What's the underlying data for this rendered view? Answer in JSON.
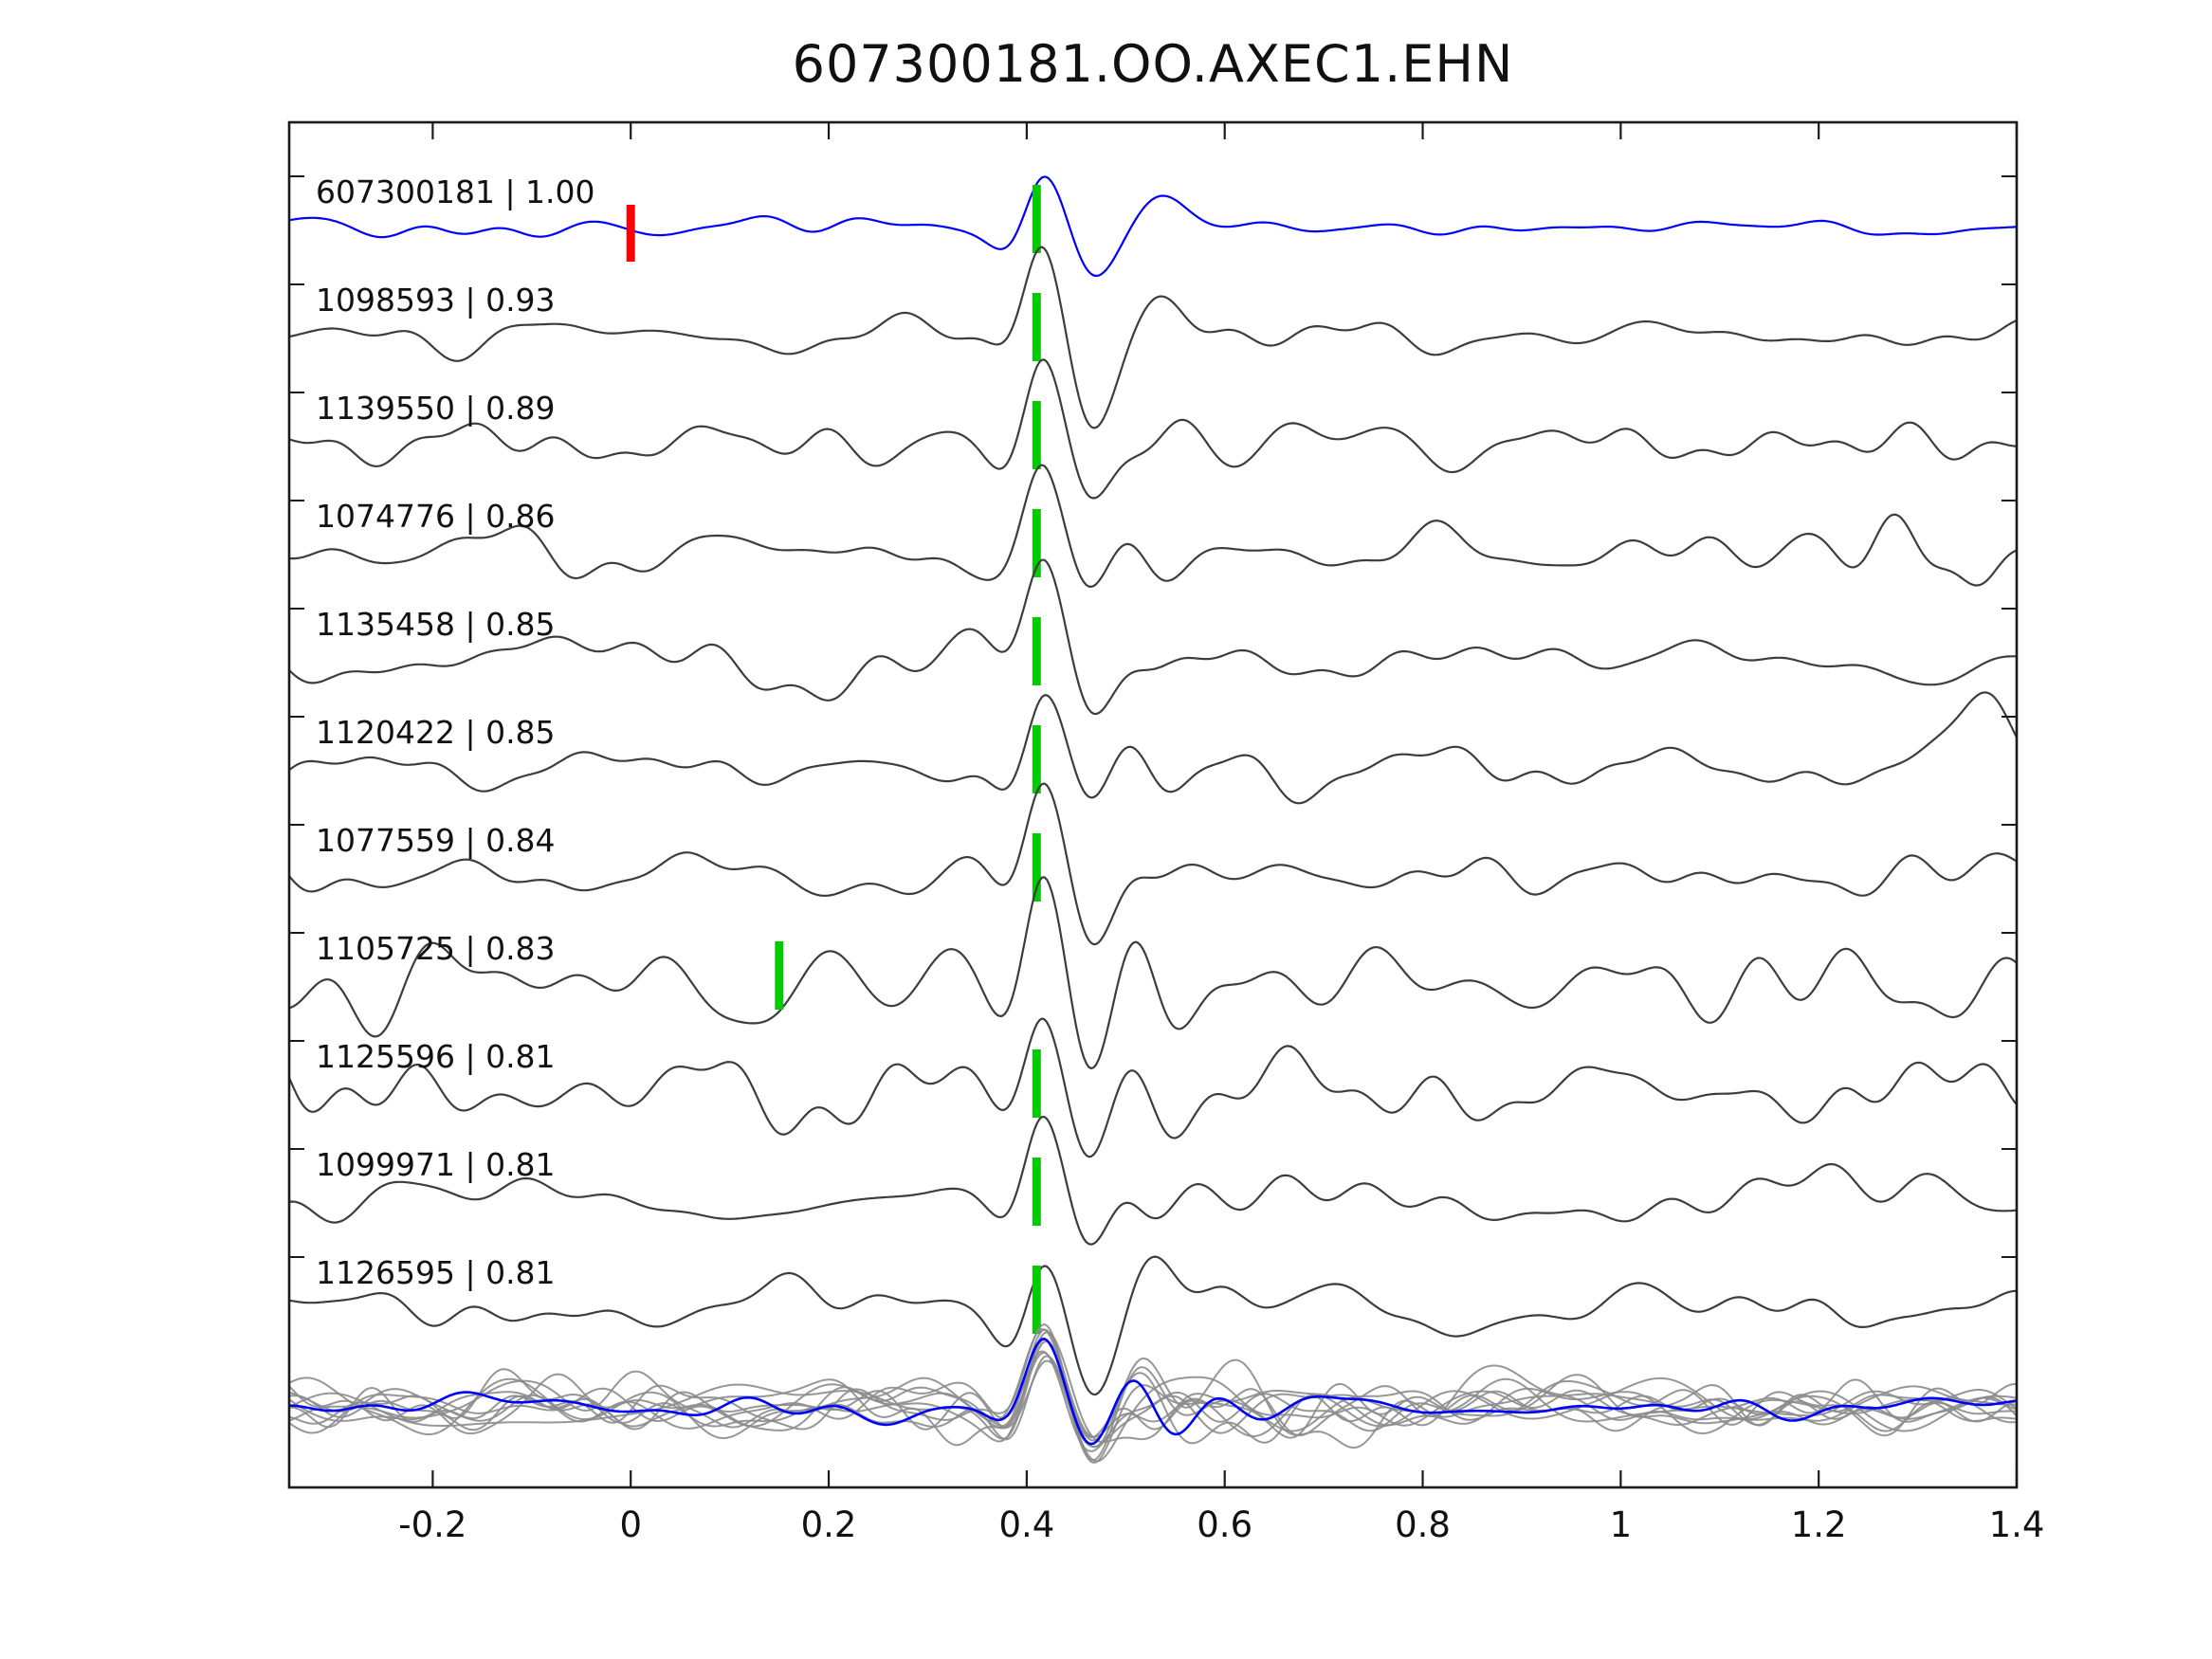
{
  "title": "607300181.OO.AXEC1.EHN",
  "colors": {
    "template": "#0000ff",
    "detection": "#3d3d3d",
    "stack_gray": "#8c8c8c",
    "pick_green": "#00cc00",
    "pick_red": "#ff0000",
    "axis": "#1a1a1a",
    "text": "#111111"
  },
  "axis": {
    "x_tick_labels": [
      "-0.2",
      "0",
      "0.2",
      "0.4",
      "0.6",
      "0.8",
      "1",
      "1.2",
      "1.4"
    ],
    "x_tick_values": [
      -0.2,
      0,
      0.2,
      0.4,
      0.6,
      0.8,
      1,
      1.2,
      1.4
    ]
  },
  "chart_data": {
    "type": "line",
    "title": "607300181.OO.AXEC1.EHN",
    "xlabel": "",
    "ylabel": "",
    "x_range": [
      -0.345,
      1.4
    ],
    "alignment_peak_time": 0.42,
    "description": "Template-matching waveform comparison: template trace (blue) with red pick at t=0, ten detection traces (gray) with green picks, and an aligned overlay stack at the bottom.",
    "traces": [
      {
        "id": "607300181",
        "correlation": "1.00",
        "label": "607300181 | 1.00",
        "role": "template",
        "color_key": "template",
        "picks": [
          {
            "time": 0.0,
            "color_key": "pick_red"
          },
          {
            "time": 0.41,
            "color_key": "pick_green"
          }
        ],
        "noise": 6,
        "amp": 56,
        "seed": 101,
        "extras": []
      },
      {
        "id": "1098593",
        "correlation": "0.93",
        "label": "1098593 | 0.93",
        "role": "detection",
        "color_key": "detection",
        "picks": [
          {
            "time": 0.41,
            "color_key": "pick_green"
          }
        ],
        "noise": 10,
        "amp": 88,
        "seed": 202,
        "extras": []
      },
      {
        "id": "1139550",
        "correlation": "0.89",
        "label": "1139550 | 0.89",
        "role": "detection",
        "color_key": "detection",
        "picks": [
          {
            "time": 0.41,
            "color_key": "pick_green"
          }
        ],
        "noise": 11,
        "amp": 84,
        "seed": 303,
        "extras": []
      },
      {
        "id": "1074776",
        "correlation": "0.86",
        "label": "1074776 | 0.86",
        "role": "detection",
        "color_key": "detection",
        "picks": [
          {
            "time": 0.41,
            "color_key": "pick_green"
          }
        ],
        "noise": 12,
        "amp": 86,
        "seed": 404,
        "extras": [
          {
            "t": 1.27,
            "amp": 48,
            "sig": 0.05,
            "f": 8,
            "ph": 1.2
          },
          {
            "t": 1.36,
            "amp": 44,
            "sig": 0.045,
            "f": 9,
            "ph": 4.4
          }
        ]
      },
      {
        "id": "1135458",
        "correlation": "0.85",
        "label": "1135458 | 0.85",
        "role": "detection",
        "color_key": "detection",
        "picks": [
          {
            "time": 0.41,
            "color_key": "pick_green"
          }
        ],
        "noise": 11,
        "amp": 90,
        "seed": 505,
        "extras": []
      },
      {
        "id": "1120422",
        "correlation": "0.85",
        "label": "1120422 | 0.85",
        "role": "detection",
        "color_key": "detection",
        "picks": [
          {
            "time": 0.41,
            "color_key": "pick_green"
          }
        ],
        "noise": 10,
        "amp": 80,
        "seed": 606,
        "extras": [
          {
            "t": 1.37,
            "amp": 80,
            "sig": 0.038,
            "f": 3.5,
            "ph": 1.57
          }
        ]
      },
      {
        "id": "1077559",
        "correlation": "0.84",
        "label": "1077559 | 0.84",
        "role": "detection",
        "color_key": "detection",
        "picks": [
          {
            "time": 0.41,
            "color_key": "pick_green"
          }
        ],
        "noise": 11,
        "amp": 92,
        "seed": 707,
        "extras": []
      },
      {
        "id": "1105725",
        "correlation": "0.83",
        "label": "1105725 | 0.83",
        "role": "detection",
        "color_key": "detection",
        "picks": [
          {
            "time": 0.15,
            "color_key": "pick_green"
          }
        ],
        "noise": 18,
        "amp": 95,
        "seed": 808,
        "extras": [
          {
            "t": 0.17,
            "amp": 34,
            "sig": 0.11,
            "f": 6.5,
            "ph": 0.8
          }
        ]
      },
      {
        "id": "1125596",
        "correlation": "0.81",
        "label": "1125596 | 0.81",
        "role": "detection",
        "color_key": "detection",
        "picks": [
          {
            "time": 0.41,
            "color_key": "pick_green"
          }
        ],
        "noise": 17,
        "amp": 78,
        "seed": 909,
        "extras": []
      },
      {
        "id": "1099971",
        "correlation": "0.81",
        "label": "1099971 | 0.81",
        "role": "detection",
        "color_key": "detection",
        "picks": [
          {
            "time": 0.41,
            "color_key": "pick_green"
          }
        ],
        "noise": 11,
        "amp": 85,
        "seed": 1010,
        "extras": []
      },
      {
        "id": "1126595",
        "correlation": "0.81",
        "label": "1126595 | 0.81",
        "role": "detection",
        "color_key": "detection",
        "picks": [
          {
            "time": 0.41,
            "color_key": "pick_green"
          }
        ],
        "noise": 10,
        "amp": 86,
        "seed": 1111,
        "extras": []
      }
    ],
    "stack": {
      "n_gray": 10,
      "gray_noise": 12,
      "gray_amp_min": 60,
      "gray_amp_max": 80,
      "template_noise": 5,
      "template_amp": 66
    }
  }
}
